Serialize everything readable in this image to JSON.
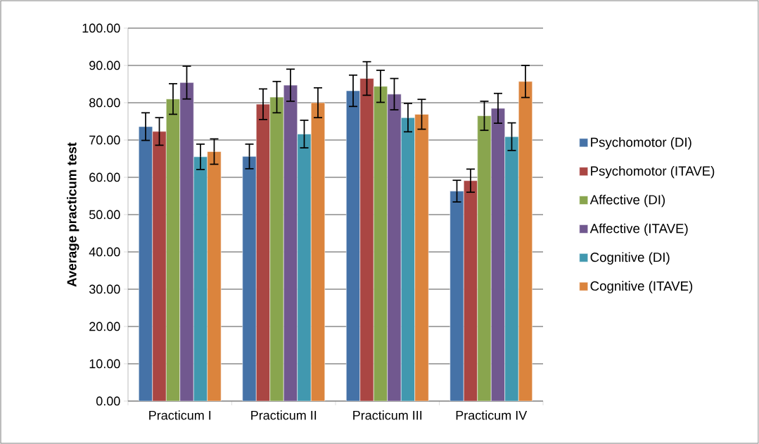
{
  "chart_data": {
    "type": "bar",
    "ylabel": "Average practicum test",
    "categories": [
      "Practicum I",
      "Practicum II",
      "Practicum III",
      "Practicum IV"
    ],
    "series": [
      {
        "name": "Psychomotor (DI)",
        "color": "#4572a7",
        "values": [
          73.6,
          65.6,
          83.2,
          56.3
        ],
        "errors": [
          3.7,
          3.3,
          4.2,
          2.9
        ]
      },
      {
        "name": "Psychomotor (ITAVE)",
        "color": "#aa4643",
        "values": [
          72.3,
          79.6,
          86.5,
          59.1
        ],
        "errors": [
          3.7,
          4.1,
          4.5,
          3.1
        ]
      },
      {
        "name": "Affective (DI)",
        "color": "#89a54e",
        "values": [
          81.0,
          81.5,
          84.4,
          76.5
        ],
        "errors": [
          4.1,
          4.2,
          4.3,
          3.9
        ]
      },
      {
        "name": "Affective (ITAVE)",
        "color": "#71588f",
        "values": [
          85.4,
          84.7,
          82.3,
          78.5
        ],
        "errors": [
          4.4,
          4.3,
          4.2,
          4.0
        ]
      },
      {
        "name": "Cognitive (DI)",
        "color": "#4198af",
        "values": [
          65.5,
          71.6,
          76.0,
          70.9
        ],
        "errors": [
          3.4,
          3.7,
          3.8,
          3.7
        ]
      },
      {
        "name": "Cognitive (ITAVE)",
        "color": "#db843d",
        "values": [
          66.9,
          80.0,
          76.9,
          85.7
        ],
        "errors": [
          3.4,
          4.0,
          4.0,
          4.3
        ]
      }
    ],
    "ylim": [
      0,
      100
    ],
    "yticks": [
      {
        "value": 0,
        "label": "0.00"
      },
      {
        "value": 10,
        "label": "10.00"
      },
      {
        "value": 20,
        "label": "20.00"
      },
      {
        "value": 30,
        "label": "30.00"
      },
      {
        "value": 40,
        "label": "40.00"
      },
      {
        "value": 50,
        "label": "50.00"
      },
      {
        "value": 60,
        "label": "60.00"
      },
      {
        "value": 70,
        "label": "70.00"
      },
      {
        "value": 80,
        "label": "80.00"
      },
      {
        "value": 90,
        "label": "90.00"
      },
      {
        "value": 100,
        "label": "100.00"
      }
    ],
    "grid": "y",
    "legend": "right"
  }
}
